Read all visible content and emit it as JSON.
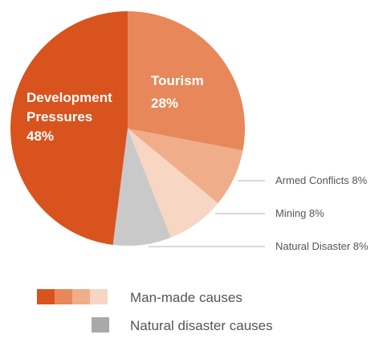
{
  "chart_data": {
    "type": "pie",
    "slices": [
      {
        "label_lines": [
          "Development",
          "Pressures"
        ],
        "value_text": "48%",
        "value": 48,
        "color": "#d9531e",
        "label_placement": "inside"
      },
      {
        "label_lines": [
          "Tourism"
        ],
        "value_text": "28%",
        "value": 28,
        "color": "#e8885a",
        "label_placement": "inside"
      },
      {
        "label": "Armed Conflicts 8%",
        "value": 8,
        "color": "#f0ad8a",
        "label_placement": "outside"
      },
      {
        "label": "Mining 8%",
        "value": 8,
        "color": "#f8d6c4",
        "label_placement": "outside"
      },
      {
        "label": "Natural Disaster 8%",
        "value": 8,
        "color": "#c9c9c9",
        "label_placement": "outside"
      }
    ],
    "legend": {
      "placement": "bottom",
      "entries": [
        {
          "label": "Man-made causes",
          "colors": [
            "#d9531e",
            "#e8885a",
            "#f0ad8a",
            "#f8d6c4"
          ]
        },
        {
          "label": "Natural disaster causes",
          "colors": [
            "#a9a9ab"
          ]
        }
      ]
    }
  }
}
